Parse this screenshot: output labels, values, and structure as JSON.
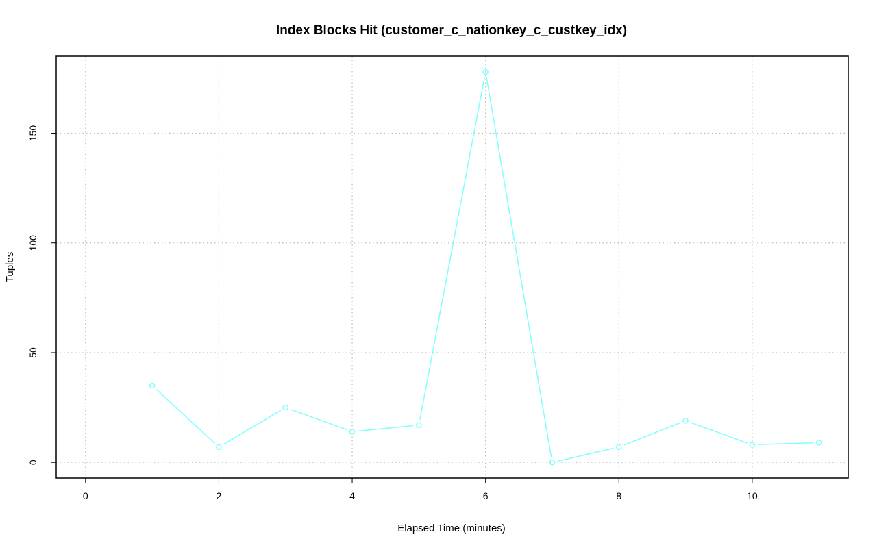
{
  "chart_data": {
    "type": "line",
    "title": "Index Blocks Hit (customer_c_nationkey_c_custkey_idx)",
    "xlabel": "Elapsed Time (minutes)",
    "ylabel": "Tuples",
    "x": [
      1,
      2,
      3,
      4,
      5,
      6,
      7,
      8,
      9,
      10,
      11
    ],
    "series": [
      {
        "values": [
          35,
          7,
          25,
          14,
          17,
          178,
          0,
          7,
          19,
          8,
          9
        ],
        "color": "#7fffff"
      }
    ],
    "xlim": [
      0,
      11
    ],
    "ylim": [
      0,
      178
    ],
    "xticks": [
      "0",
      "2",
      "4",
      "6",
      "8",
      "10"
    ],
    "yticks": [
      "0",
      "50",
      "100",
      "150"
    ],
    "grid": true,
    "markers": "open-circle"
  }
}
